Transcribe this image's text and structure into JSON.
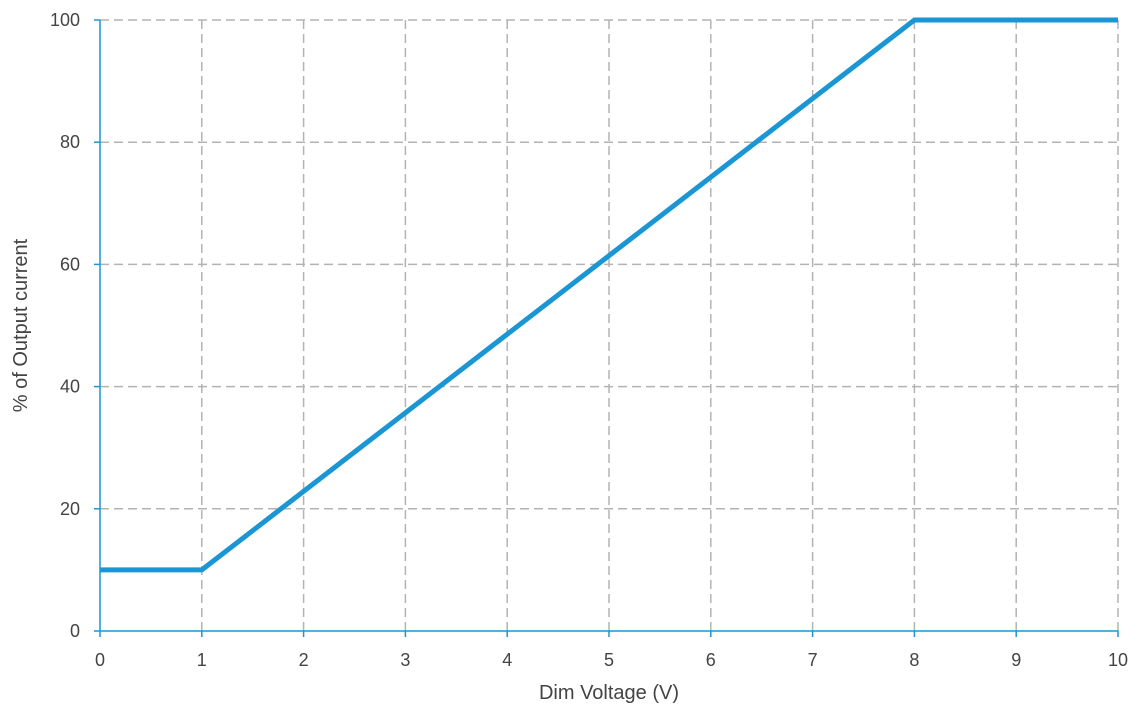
{
  "chart_data": {
    "type": "line",
    "title": "",
    "xlabel": "Dim Voltage (V)",
    "ylabel": "% of Output current",
    "xlim": [
      0,
      10
    ],
    "ylim": [
      0,
      100
    ],
    "x_ticks": [
      0,
      1,
      2,
      3,
      4,
      5,
      6,
      7,
      8,
      9,
      10
    ],
    "y_ticks": [
      0,
      20,
      40,
      60,
      80,
      100
    ],
    "grid": true,
    "grid_style": "dashed",
    "series": [
      {
        "color": "#1a96d4",
        "x": [
          0,
          1,
          8,
          10
        ],
        "y": [
          10,
          10,
          100,
          100
        ]
      }
    ],
    "axis_color": "#1a96d4",
    "grid_color": "#b3b3b3"
  }
}
